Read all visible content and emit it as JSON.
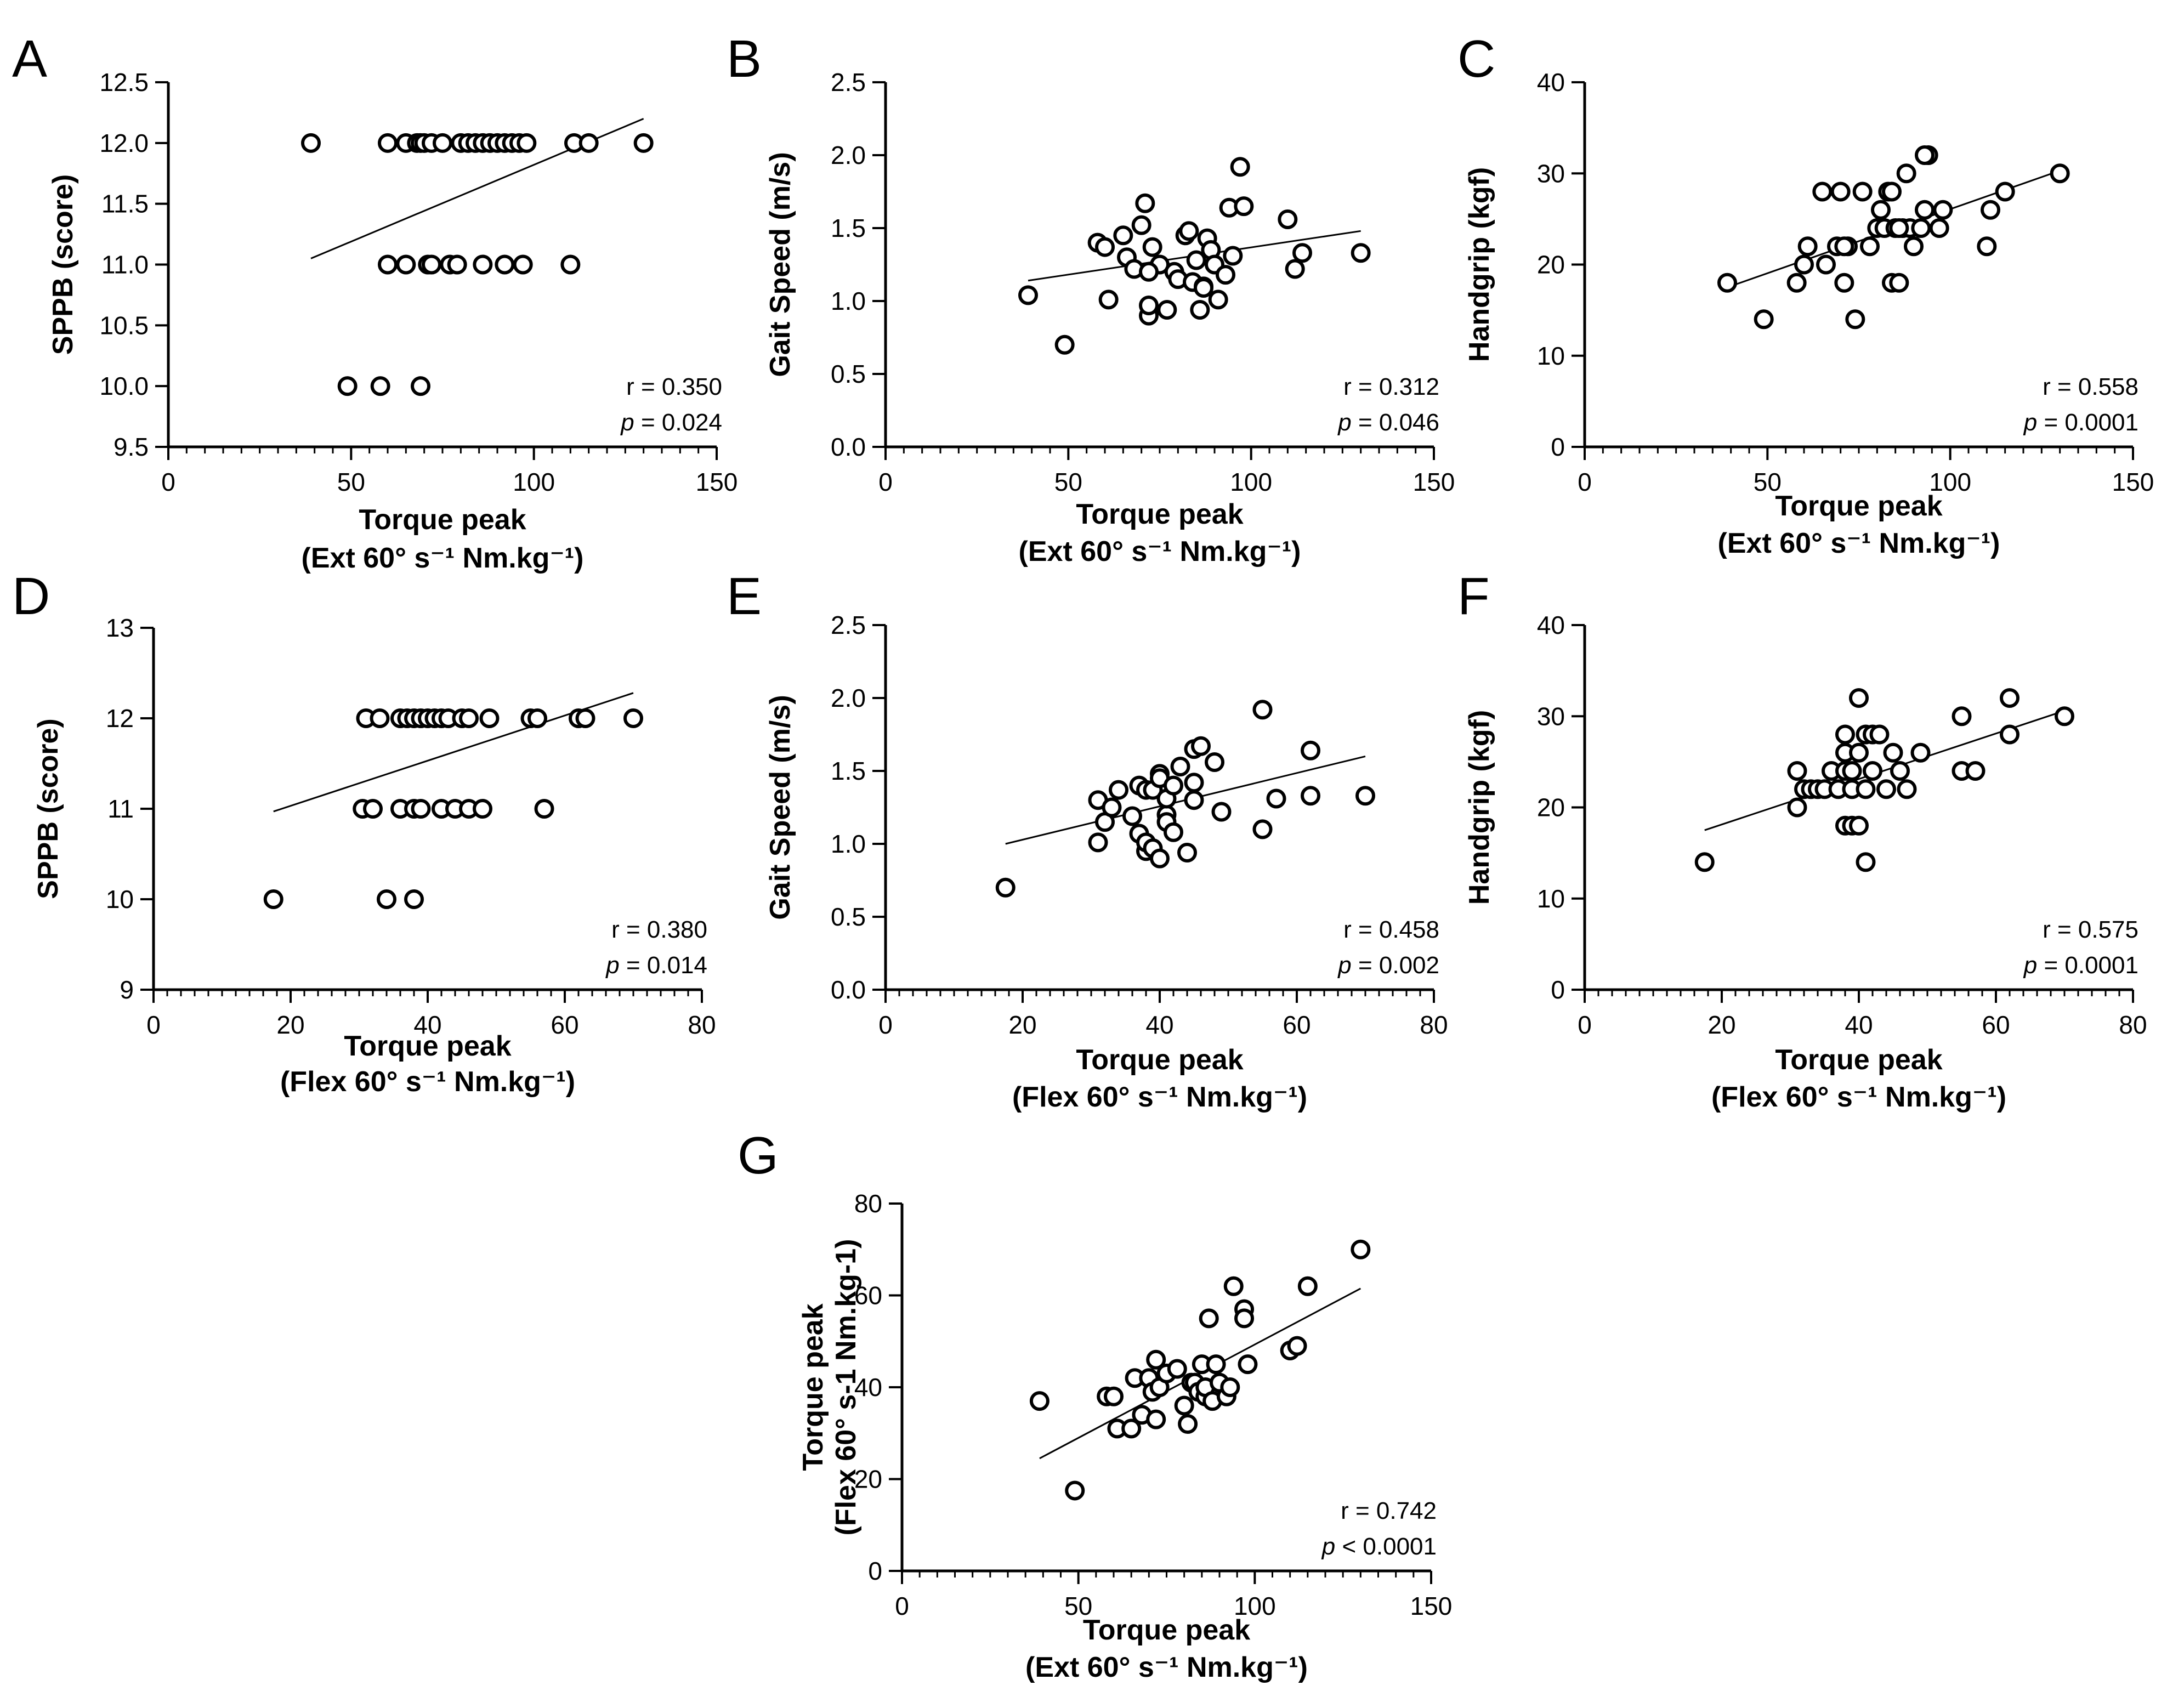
{
  "chart_data": [
    {
      "type": "scatter",
      "panel": "A",
      "title": "",
      "xlabel": "Torque peak",
      "xlabel2": "(Ext 60° s⁻¹ Nm.kg⁻¹)",
      "ylabel": "SPPB (score)",
      "xlim": [
        0,
        150
      ],
      "ylim": [
        9.5,
        12.5
      ],
      "xticks": [
        "0",
        "50",
        "100",
        "150"
      ],
      "yticks": [
        "9.5",
        "10.0",
        "10.5",
        "11.0",
        "11.5",
        "12.0",
        "12.5"
      ],
      "stat_r": "r = 0.350",
      "stat_p_label": "p",
      "stat_p_rest": " = 0.024",
      "fit_line": {
        "x": [
          39,
          130
        ],
        "y": [
          11.05,
          12.2
        ]
      },
      "x": [
        39,
        60,
        65,
        68,
        69,
        70,
        72,
        75,
        80,
        82,
        84,
        86,
        88,
        90,
        92,
        94,
        96,
        98,
        111,
        115,
        130,
        60,
        65,
        71,
        72,
        77,
        79,
        86,
        92,
        97,
        110,
        49,
        58,
        69
      ],
      "y": [
        12,
        12,
        12,
        12,
        12,
        12,
        12,
        12,
        12,
        12,
        12,
        12,
        12,
        12,
        12,
        12,
        12,
        12,
        12,
        12,
        12,
        11,
        11,
        11,
        11,
        11,
        11,
        11,
        11,
        11,
        11,
        10,
        10,
        10
      ]
    },
    {
      "type": "scatter",
      "panel": "B",
      "title": "",
      "xlabel": "Torque peak",
      "xlabel2": "(Ext 60° s⁻¹ Nm.kg⁻¹)",
      "ylabel": "Gait Speed (m/s)",
      "xlim": [
        0,
        150
      ],
      "ylim": [
        0,
        2.5
      ],
      "xticks": [
        "0",
        "50",
        "100",
        "150"
      ],
      "yticks": [
        "0.0",
        "0.5",
        "1.0",
        "1.5",
        "2.0",
        "2.5"
      ],
      "stat_r": "r = 0.312",
      "stat_p_label": "p",
      "stat_p_rest": " = 0.046",
      "fit_line": {
        "x": [
          39,
          130
        ],
        "y": [
          1.14,
          1.48
        ]
      },
      "x": [
        39,
        49,
        58,
        60,
        61,
        65,
        66,
        68,
        70,
        71,
        72,
        72,
        73,
        75,
        77,
        79,
        80,
        82,
        83,
        84,
        85,
        86,
        87,
        88,
        89,
        90,
        91,
        93,
        94,
        95,
        97,
        98,
        110,
        112,
        114,
        130,
        72,
        87
      ],
      "y": [
        1.04,
        0.7,
        1.4,
        1.37,
        1.01,
        1.45,
        1.3,
        1.22,
        1.52,
        1.67,
        0.9,
        0.97,
        1.37,
        1.25,
        0.94,
        1.2,
        1.15,
        1.45,
        1.48,
        1.13,
        1.28,
        0.94,
        1.1,
        1.43,
        1.35,
        1.25,
        1.01,
        1.18,
        1.64,
        1.31,
        1.92,
        1.65,
        1.56,
        1.22,
        1.33,
        1.33,
        1.2,
        1.09
      ]
    },
    {
      "type": "scatter",
      "panel": "C",
      "title": "",
      "xlabel": "Torque peak",
      "xlabel2": "(Ext 60° s⁻¹ Nm.kg⁻¹)",
      "ylabel": "Handgrip (kgf)",
      "xlim": [
        0,
        150
      ],
      "ylim": [
        0,
        40
      ],
      "xticks": [
        "0",
        "50",
        "100",
        "150"
      ],
      "yticks": [
        "0",
        "10",
        "20",
        "30",
        "40"
      ],
      "stat_r": "r = 0.558",
      "stat_p_label": "p",
      "stat_p_rest": " = 0.0001",
      "fit_line": {
        "x": [
          39,
          130
        ],
        "y": [
          17.5,
          30.3
        ]
      },
      "x": [
        39,
        49,
        58,
        60,
        61,
        65,
        66,
        69,
        70,
        71,
        72,
        74,
        76,
        78,
        80,
        81,
        82,
        83,
        84,
        84,
        85,
        86,
        87,
        88,
        89,
        90,
        92,
        93,
        94,
        97,
        98,
        110,
        111,
        115,
        130,
        86,
        93,
        71
      ],
      "y": [
        18,
        14,
        18,
        20,
        22,
        28,
        20,
        22,
        28,
        18,
        22,
        14,
        28,
        22,
        24,
        26,
        24,
        28,
        28,
        18,
        24,
        18,
        24,
        30,
        24,
        22,
        24,
        26,
        32,
        24,
        26,
        22,
        26,
        28,
        30,
        24,
        32,
        22
      ]
    },
    {
      "type": "scatter",
      "panel": "D",
      "title": "",
      "xlabel": "Torque peak",
      "xlabel2": "(Flex 60° s⁻¹ Nm.kg⁻¹)",
      "ylabel": "SPPB (score)",
      "xlim": [
        0,
        80
      ],
      "ylim": [
        9,
        13
      ],
      "xticks": [
        "0",
        "20",
        "40",
        "60",
        "80"
      ],
      "yticks": [
        "9",
        "10",
        "11",
        "12",
        "13"
      ],
      "stat_r": "r = 0.380",
      "stat_p_label": "p",
      "stat_p_rest": " = 0.014",
      "fit_line": {
        "x": [
          17.5,
          70
        ],
        "y": [
          10.97,
          12.28
        ]
      },
      "x": [
        17.5,
        31,
        33,
        36,
        37,
        38,
        39,
        40,
        41,
        42,
        43,
        45,
        46,
        49,
        55,
        56,
        62,
        63,
        70,
        30.5,
        32,
        36,
        38,
        39,
        42,
        44,
        46,
        48,
        57,
        34,
        38
      ],
      "y": [
        10,
        12,
        12,
        12,
        12,
        12,
        12,
        12,
        12,
        12,
        12,
        12,
        12,
        12,
        12,
        12,
        12,
        12,
        12,
        11,
        11,
        11,
        11,
        11,
        11,
        11,
        11,
        11,
        11,
        10,
        10
      ]
    },
    {
      "type": "scatter",
      "panel": "E",
      "title": "",
      "xlabel": "Torque peak",
      "xlabel2": "(Flex 60° s⁻¹ Nm.kg⁻¹)",
      "ylabel": "Gait Speed (m/s)",
      "xlim": [
        0,
        80
      ],
      "ylim": [
        0,
        2.5
      ],
      "xticks": [
        "0",
        "20",
        "40",
        "60",
        "80"
      ],
      "yticks": [
        "0.0",
        "0.5",
        "1.0",
        "1.5",
        "2.0",
        "2.5"
      ],
      "stat_r": "r = 0.458",
      "stat_p_label": "p",
      "stat_p_rest": " = 0.002",
      "fit_line": {
        "x": [
          17.5,
          70
        ],
        "y": [
          1.0,
          1.6
        ]
      },
      "x": [
        17.5,
        31,
        31,
        32,
        33,
        34,
        36,
        37,
        37,
        38,
        38,
        38,
        39,
        39,
        40,
        40,
        40,
        41,
        41,
        41,
        42,
        42,
        43,
        44,
        45,
        45,
        45,
        46,
        48,
        49,
        55,
        55,
        57,
        62,
        62,
        70
      ],
      "y": [
        0.7,
        1.3,
        1.01,
        1.15,
        1.25,
        1.37,
        1.19,
        1.07,
        1.4,
        0.95,
        1.01,
        1.37,
        1.37,
        0.97,
        1.48,
        1.45,
        0.9,
        1.2,
        1.15,
        1.31,
        1.4,
        1.08,
        1.53,
        0.94,
        1.65,
        1.42,
        1.3,
        1.67,
        1.56,
        1.22,
        1.92,
        1.1,
        1.31,
        1.64,
        1.33,
        1.33
      ]
    },
    {
      "type": "scatter",
      "panel": "F",
      "title": "",
      "xlabel": "Torque peak",
      "xlabel2": "(Flex 60° s⁻¹ Nm.kg⁻¹)",
      "ylabel": "Handgrip (kgf)",
      "xlim": [
        0,
        80
      ],
      "ylim": [
        0,
        40
      ],
      "xticks": [
        "0",
        "20",
        "40",
        "60",
        "80"
      ],
      "yticks": [
        "0",
        "10",
        "20",
        "30",
        "40"
      ],
      "stat_r": "r = 0.575",
      "stat_p_label": "p",
      "stat_p_rest": " = 0.0001",
      "fit_line": {
        "x": [
          17.5,
          70
        ],
        "y": [
          17.5,
          30.6
        ]
      },
      "x": [
        17.5,
        31,
        31,
        32,
        33,
        34,
        35,
        36,
        37,
        38,
        38,
        38,
        38,
        39,
        39,
        39,
        40,
        40,
        40,
        41,
        41,
        41,
        42,
        42,
        43,
        44,
        45,
        46,
        47,
        49,
        55,
        55,
        57,
        62,
        62,
        70
      ],
      "y": [
        14,
        20,
        24,
        22,
        22,
        22,
        22,
        24,
        22,
        18,
        28,
        26,
        24,
        24,
        18,
        22,
        32,
        26,
        18,
        28,
        22,
        14,
        28,
        24,
        28,
        22,
        26,
        24,
        22,
        26,
        30,
        24,
        24,
        32,
        28,
        30
      ]
    },
    {
      "type": "scatter",
      "panel": "G",
      "title": "",
      "xlabel": "Torque peak",
      "xlabel2": "(Ext 60° s⁻¹ Nm.kg⁻¹)",
      "ylabel": "Torque peak",
      "ylabel2": "(Flex 60° s-1 Nm.kg-1)",
      "xlim": [
        0,
        150
      ],
      "ylim": [
        0,
        80
      ],
      "xticks": [
        "0",
        "50",
        "100",
        "150"
      ],
      "yticks": [
        "0",
        "20",
        "40",
        "60",
        "80"
      ],
      "stat_r": "r = 0.742",
      "stat_p_label": "p",
      "stat_p_rest": " < 0.0001",
      "fit_line": {
        "x": [
          39,
          130
        ],
        "y": [
          24.5,
          61.5
        ]
      },
      "x": [
        39,
        49,
        58,
        60,
        61,
        65,
        66,
        68,
        70,
        71,
        72,
        72,
        73,
        75,
        78,
        80,
        81,
        82,
        83,
        84,
        85,
        86,
        86,
        87,
        88,
        89,
        90,
        92,
        93,
        94,
        97,
        97,
        98,
        110,
        112,
        115,
        130
      ],
      "y": [
        37,
        17.5,
        38,
        38,
        31,
        31,
        42,
        34,
        42,
        39,
        46,
        33,
        40,
        43,
        44,
        36,
        32,
        41,
        41,
        39,
        45,
        38,
        40,
        55,
        37,
        45,
        41,
        38,
        40,
        62,
        57,
        55,
        45,
        48,
        49,
        62,
        70
      ]
    }
  ]
}
